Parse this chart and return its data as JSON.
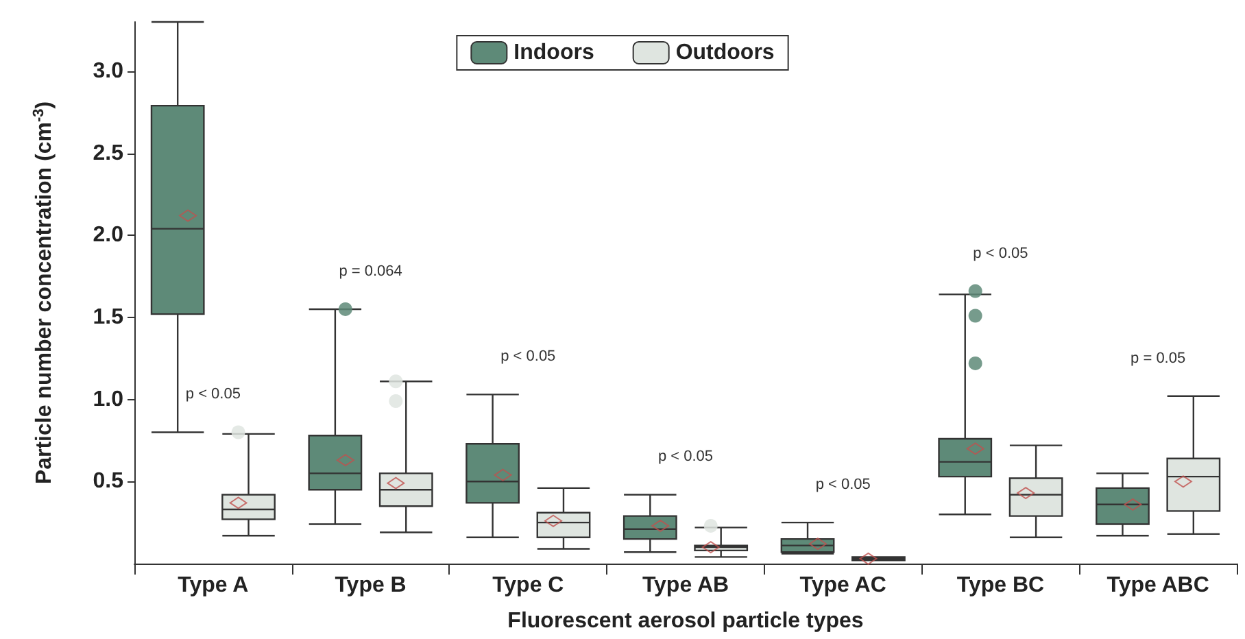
{
  "chart_data": {
    "type": "box",
    "xlabel": "Fluorescent aerosol particle types",
    "ylabel": "Particle number concentration (cm$^{-3}$)",
    "categories": [
      "Type A",
      "Type B",
      "Type C",
      "Type AB",
      "Type AC",
      "Type BC",
      "Type ABC"
    ],
    "ylim": [
      0,
      3.3
    ],
    "yticks": [
      {
        "value": 0.5,
        "label": "0.5"
      },
      {
        "value": 1,
        "label": "1.0"
      },
      {
        "value": 1.5,
        "label": "1.5"
      },
      {
        "value": 2,
        "label": "2.0"
      },
      {
        "value": 2.5,
        "label": "2.5"
      },
      {
        "value": 3,
        "label": "3.0"
      }
    ],
    "grid": false,
    "legend": "top",
    "series": [
      {
        "name": "Indoors",
        "color": "#5e8a78",
        "boxes": [
          {
            "low": 0.8,
            "q1": 1.52,
            "median": 2.04,
            "q3": 2.79,
            "high": 3.3,
            "mean": 2.12
          },
          {
            "low": 0.24,
            "q1": 0.45,
            "median": 0.55,
            "q3": 0.78,
            "high": 1.55,
            "mean": 0.63,
            "outliers": [
              1.55
            ]
          },
          {
            "low": 0.16,
            "q1": 0.37,
            "median": 0.5,
            "q3": 0.73,
            "high": 1.03,
            "mean": 0.54
          },
          {
            "low": 0.07,
            "q1": 0.15,
            "median": 0.21,
            "q3": 0.29,
            "high": 0.42,
            "mean": 0.23
          },
          {
            "low": 0.06,
            "q1": 0.07,
            "median": 0.11,
            "q3": 0.15,
            "high": 0.25,
            "mean": 0.12
          },
          {
            "low": 0.3,
            "q1": 0.53,
            "median": 0.62,
            "q3": 0.76,
            "high": 1.64,
            "mean": 0.7,
            "outliers": [
              1.66,
              1.51,
              1.22
            ]
          },
          {
            "low": 0.17,
            "q1": 0.24,
            "median": 0.36,
            "q3": 0.46,
            "high": 0.55,
            "mean": 0.36
          }
        ]
      },
      {
        "name": "Outdoors",
        "color": "#dfe5e0",
        "boxes": [
          {
            "low": 0.17,
            "q1": 0.27,
            "median": 0.33,
            "q3": 0.42,
            "high": 0.79,
            "mean": 0.37,
            "outliers": [
              0.8
            ]
          },
          {
            "low": 0.19,
            "q1": 0.35,
            "median": 0.45,
            "q3": 0.55,
            "high": 1.11,
            "mean": 0.49,
            "outliers": [
              1.11,
              0.99
            ]
          },
          {
            "low": 0.09,
            "q1": 0.16,
            "median": 0.25,
            "q3": 0.31,
            "high": 0.46,
            "mean": 0.26
          },
          {
            "low": 0.04,
            "q1": 0.08,
            "median": 0.1,
            "q3": 0.11,
            "high": 0.22,
            "mean": 0.1,
            "outliers": [
              0.23
            ]
          },
          {
            "low": 0.02,
            "q1": 0.02,
            "median": 0.03,
            "q3": 0.04,
            "high": 0.04,
            "mean": 0.03
          },
          {
            "low": 0.16,
            "q1": 0.29,
            "median": 0.42,
            "q3": 0.52,
            "high": 0.72,
            "mean": 0.43
          },
          {
            "low": 0.18,
            "q1": 0.32,
            "median": 0.53,
            "q3": 0.64,
            "high": 1.02,
            "mean": 0.5
          }
        ]
      }
    ],
    "annotations": [
      "p < 0.05",
      "p = 0.064",
      "p < 0.05",
      "p < 0.05",
      "p < 0.05",
      "p < 0.05",
      "p = 0.05"
    ]
  }
}
